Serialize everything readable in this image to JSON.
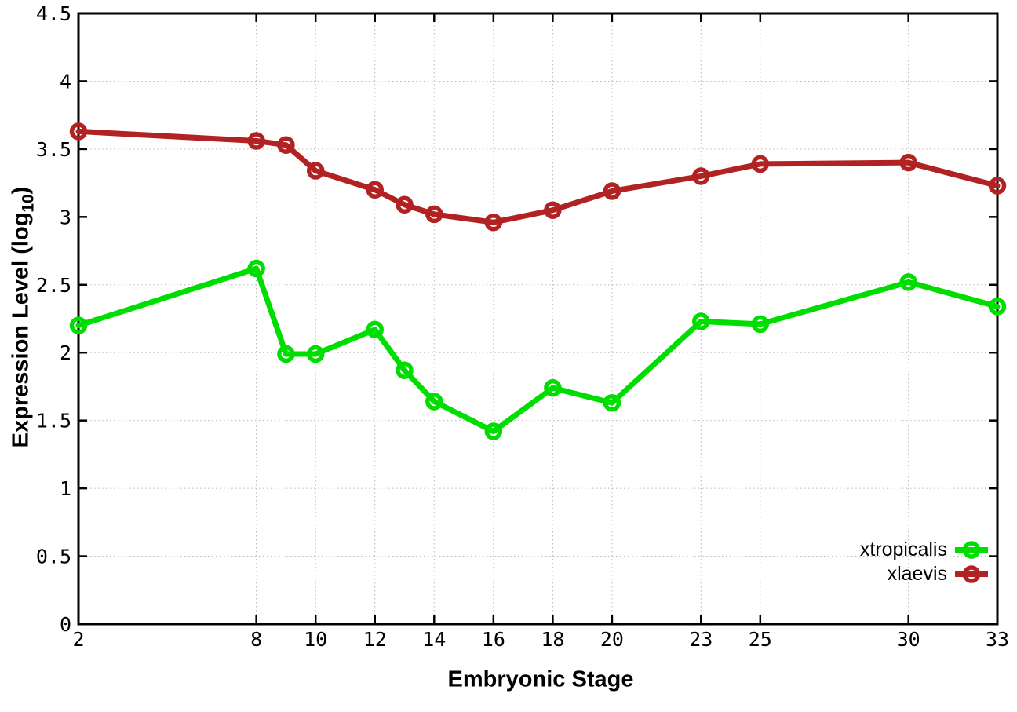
{
  "chart_data": {
    "type": "line",
    "title": "",
    "xlabel": "Embryonic Stage",
    "ylabel": "Expression Level (log10)",
    "ylabel_parts": {
      "pre": "Expression Level (log",
      "sub": "10",
      "post": ")"
    },
    "xlim": [
      2,
      33
    ],
    "ylim": [
      0,
      4.5
    ],
    "grid": true,
    "legend_position": "inside-bottom-right",
    "x_tick_labels": [
      "2",
      "8",
      "10",
      "12",
      "14",
      "16",
      "18",
      "20",
      "23",
      "25",
      "30",
      "33"
    ],
    "x_ticks": [
      2,
      8,
      10,
      12,
      14,
      16,
      18,
      20,
      23,
      25,
      30,
      33
    ],
    "y_tick_labels": [
      "0",
      "0.5",
      "1",
      "1.5",
      "2",
      "2.5",
      "3",
      "3.5",
      "4",
      "4.5"
    ],
    "y_ticks": [
      0,
      0.5,
      1,
      1.5,
      2,
      2.5,
      3,
      3.5,
      4,
      4.5
    ],
    "x": [
      2,
      8,
      9,
      10,
      12,
      13,
      14,
      16,
      18,
      20,
      23,
      25,
      30,
      33
    ],
    "series": [
      {
        "name": "xtropicalis",
        "color": "#00dd00",
        "values": [
          2.2,
          2.62,
          1.99,
          1.99,
          2.17,
          1.87,
          1.64,
          1.42,
          1.74,
          1.63,
          2.23,
          2.21,
          2.52,
          2.34
        ]
      },
      {
        "name": "xlaevis",
        "color": "#b22222",
        "values": [
          3.63,
          3.56,
          3.53,
          3.34,
          3.2,
          3.09,
          3.02,
          2.96,
          3.05,
          3.19,
          3.3,
          3.39,
          3.4,
          3.23
        ]
      }
    ],
    "colors": {
      "border": "#000000",
      "grid": "#b8b8b8",
      "text": "#000000",
      "background": "#ffffff"
    }
  }
}
